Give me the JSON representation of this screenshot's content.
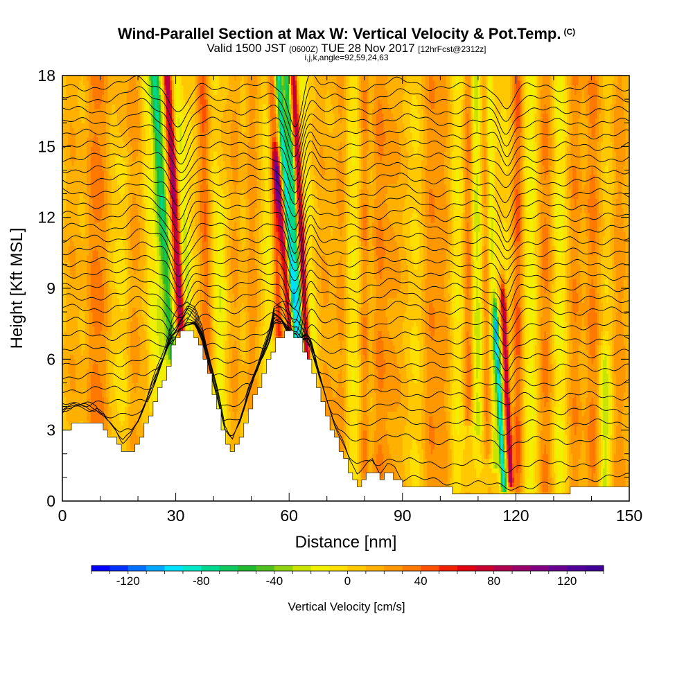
{
  "title": {
    "main": "Wind-Parallel Section at Max W: Vertical Velocity & Pot.Temp.",
    "copyright": "(C)",
    "valid_prefix": "Valid 1500 JST",
    "valid_zulu": "(0600Z)",
    "valid_date": "TUE 28 Nov 2017",
    "forecast": "[12hrFcst@2312z]",
    "indices": "i,j,k,angle=92,59,24,63"
  },
  "chart_data": {
    "type": "heatmap",
    "xlabel": "Distance [nm]",
    "ylabel": "Height [Kft MSL]",
    "xlim": [
      0,
      150
    ],
    "ylim": [
      0,
      18
    ],
    "x_ticks": [
      "0",
      "30",
      "60",
      "90",
      "120",
      "150"
    ],
    "y_ticks": [
      "0",
      "3",
      "6",
      "9",
      "12",
      "15",
      "18"
    ],
    "colorbar": {
      "label": "Vertical Velocity [cm/s]",
      "tick_labels": [
        "-120",
        "-80",
        "-40",
        "0",
        "40",
        "80",
        "120"
      ],
      "min": -140,
      "max": 140,
      "step": 10
    },
    "terrain_profile": [
      [
        0,
        3.0
      ],
      [
        3,
        3.3
      ],
      [
        9,
        3.3
      ],
      [
        11,
        3.0
      ],
      [
        12,
        2.8
      ],
      [
        14,
        2.5
      ],
      [
        16,
        2.0
      ],
      [
        18,
        2.1
      ],
      [
        20,
        2.6
      ],
      [
        22,
        3.3
      ],
      [
        24,
        4.2
      ],
      [
        27,
        5.5
      ],
      [
        29,
        6.6
      ],
      [
        31,
        7.2
      ],
      [
        33,
        7.4
      ],
      [
        35,
        7.0
      ],
      [
        37,
        6.2
      ],
      [
        39,
        5.0
      ],
      [
        41,
        3.8
      ],
      [
        43,
        2.5
      ],
      [
        45,
        2.1
      ],
      [
        47,
        2.8
      ],
      [
        49,
        3.8
      ],
      [
        51,
        4.6
      ],
      [
        53,
        5.4
      ],
      [
        55,
        6.3
      ],
      [
        56,
        7.0
      ],
      [
        60,
        7.1
      ],
      [
        62,
        7.0
      ],
      [
        64,
        6.3
      ],
      [
        66,
        5.5
      ],
      [
        68,
        4.5
      ],
      [
        70,
        3.5
      ],
      [
        72,
        2.6
      ],
      [
        74,
        1.9
      ],
      [
        76,
        1.1
      ],
      [
        78,
        0.7
      ],
      [
        80,
        1.0
      ],
      [
        82,
        1.3
      ],
      [
        84,
        0.9
      ],
      [
        86,
        1.2
      ],
      [
        88,
        1.0
      ],
      [
        90,
        0.5
      ],
      [
        94,
        0.5
      ],
      [
        100,
        0.5
      ],
      [
        106,
        0.4
      ],
      [
        112,
        0.3
      ],
      [
        120,
        0.3
      ],
      [
        126,
        0.3
      ],
      [
        133,
        0.3
      ],
      [
        134,
        0.6
      ],
      [
        150,
        0.6
      ]
    ],
    "vertical_velocity_features": [
      {
        "x": 29.0,
        "w": -60,
        "width": 1.3,
        "z_min": 6.0,
        "z_max": 18,
        "tilt": 0.38
      },
      {
        "x": 31.5,
        "w": 85,
        "width": 1.0,
        "z_min": 7.2,
        "z_max": 18,
        "tilt": 0.35
      },
      {
        "x": 33.5,
        "w": -25,
        "width": 1.2,
        "z_min": 7.0,
        "z_max": 18,
        "tilt": 0.3
      },
      {
        "x": 26.5,
        "w": -20,
        "width": 1.5,
        "z_min": 4.5,
        "z_max": 18,
        "tilt": 0.2
      },
      {
        "x": 24.0,
        "w": -18,
        "width": 1.2,
        "z_min": 4.0,
        "z_max": 18,
        "tilt": 0.15
      },
      {
        "x": 19.0,
        "w": 25,
        "width": 2.0,
        "z_min": 2.3,
        "z_max": 18,
        "tilt": 0.0
      },
      {
        "x": 16.0,
        "w": -15,
        "width": 2.0,
        "z_min": 2.3,
        "z_max": 14,
        "tilt": 0.0
      },
      {
        "x": 11.0,
        "w": 22,
        "width": 2.0,
        "z_min": 3.0,
        "z_max": 18,
        "tilt": 0.0
      },
      {
        "x": 8.0,
        "w": 18,
        "width": 2.0,
        "z_min": 3.3,
        "z_max": 18,
        "tilt": 0.0
      },
      {
        "x": 4.0,
        "w": 12,
        "width": 2.5,
        "z_min": 3.3,
        "z_max": 18,
        "tilt": 0.0
      },
      {
        "x": 38.5,
        "w": 30,
        "width": 1.5,
        "z_min": 5.5,
        "z_max": 18,
        "tilt": 0.1
      },
      {
        "x": 42.0,
        "w": -22,
        "width": 1.6,
        "z_min": 2.5,
        "z_max": 12,
        "tilt": 0.0
      },
      {
        "x": 46.0,
        "w": 20,
        "width": 1.5,
        "z_min": 2.5,
        "z_max": 18,
        "tilt": 0.0
      },
      {
        "x": 50.0,
        "w": 15,
        "width": 2.0,
        "z_min": 4.0,
        "z_max": 18,
        "tilt": 0.0
      },
      {
        "x": 55.0,
        "w": -12,
        "width": 1.5,
        "z_min": 6.5,
        "z_max": 18,
        "tilt": 0.0
      },
      {
        "x": 57.5,
        "w": 45,
        "width": 1.2,
        "z_min": 7.0,
        "z_max": 18,
        "tilt": 0.2
      },
      {
        "x": 59.0,
        "w": -30,
        "width": 1.0,
        "z_min": 7.2,
        "z_max": 12,
        "tilt": 0.3
      },
      {
        "x": 60.2,
        "w": 95,
        "width": 0.9,
        "z_min": 7.2,
        "z_max": 14,
        "tilt": 0.5
      },
      {
        "x": 62.0,
        "w": -95,
        "width": 1.0,
        "z_min": 6.5,
        "z_max": 18,
        "tilt": 0.42
      },
      {
        "x": 63.6,
        "w": -70,
        "width": 0.8,
        "z_min": 5.5,
        "z_max": 18,
        "tilt": 0.35
      },
      {
        "x": 65.0,
        "w": 85,
        "width": 0.8,
        "z_min": 5.2,
        "z_max": 18,
        "tilt": 0.3
      },
      {
        "x": 66.5,
        "w": -20,
        "width": 1.2,
        "z_min": 4.5,
        "z_max": 18,
        "tilt": 0.2
      },
      {
        "x": 69.5,
        "w": 18,
        "width": 1.8,
        "z_min": 3.0,
        "z_max": 18,
        "tilt": 0.1
      },
      {
        "x": 74.0,
        "w": 22,
        "width": 1.5,
        "z_min": 1.5,
        "z_max": 18,
        "tilt": 0.0
      },
      {
        "x": 77.5,
        "w": -15,
        "width": 2.0,
        "z_min": 1.0,
        "z_max": 18,
        "tilt": 0.0
      },
      {
        "x": 80.0,
        "w": 25,
        "width": 1.2,
        "z_min": 1.0,
        "z_max": 18,
        "tilt": 0.0
      },
      {
        "x": 83.5,
        "w": 25,
        "width": 2.0,
        "z_min": 1.0,
        "z_max": 18,
        "tilt": 0.0
      },
      {
        "x": 88.5,
        "w": 20,
        "width": 2.5,
        "z_min": 0.5,
        "z_max": 18,
        "tilt": 0.0
      },
      {
        "x": 93.0,
        "w": -12,
        "width": 2.0,
        "z_min": 0.5,
        "z_max": 18,
        "tilt": 0.0
      },
      {
        "x": 97.0,
        "w": 25,
        "width": 2.2,
        "z_min": 0.5,
        "z_max": 18,
        "tilt": 0.0
      },
      {
        "x": 101.5,
        "w": 18,
        "width": 2.0,
        "z_min": 0.5,
        "z_max": 18,
        "tilt": 0.0
      },
      {
        "x": 105.0,
        "w": -15,
        "width": 2.0,
        "z_min": 0.5,
        "z_max": 18,
        "tilt": 0.0
      },
      {
        "x": 107.5,
        "w": 30,
        "width": 1.3,
        "z_min": 3.5,
        "z_max": 18,
        "tilt": 0.0
      },
      {
        "x": 110.0,
        "w": -25,
        "width": 1.5,
        "z_min": 3.0,
        "z_max": 18,
        "tilt": 0.05
      },
      {
        "x": 112.5,
        "w": 25,
        "width": 1.3,
        "z_min": 2.0,
        "z_max": 18,
        "tilt": 0.05
      },
      {
        "x": 114.5,
        "w": -35,
        "width": 1.2,
        "z_min": 1.5,
        "z_max": 18,
        "tilt": 0.1
      },
      {
        "x": 116.8,
        "w": -90,
        "width": 0.7,
        "z_min": 0.6,
        "z_max": 7.5,
        "tilt": 0.3
      },
      {
        "x": 118.6,
        "w": 90,
        "width": 0.7,
        "z_min": 0.8,
        "z_max": 8.5,
        "tilt": 0.25
      },
      {
        "x": 120.5,
        "w": 30,
        "width": 1.3,
        "z_min": 0.5,
        "z_max": 18,
        "tilt": 0.0
      },
      {
        "x": 124.0,
        "w": -15,
        "width": 1.8,
        "z_min": 0.5,
        "z_max": 18,
        "tilt": 0.0
      },
      {
        "x": 128.0,
        "w": 22,
        "width": 2.0,
        "z_min": 0.5,
        "z_max": 18,
        "tilt": 0.0
      },
      {
        "x": 132.0,
        "w": -15,
        "width": 2.0,
        "z_min": 0.5,
        "z_max": 18,
        "tilt": 0.0
      },
      {
        "x": 136.0,
        "w": 22,
        "width": 2.0,
        "z_min": 0.5,
        "z_max": 18,
        "tilt": 0.0
      },
      {
        "x": 140.0,
        "w": 25,
        "width": 2.0,
        "z_min": 0.5,
        "z_max": 18,
        "tilt": 0.0
      },
      {
        "x": 143.5,
        "w": -30,
        "width": 1.5,
        "z_min": 0.5,
        "z_max": 6,
        "tilt": 0.0
      },
      {
        "x": 147.0,
        "w": 18,
        "width": 2.0,
        "z_min": 0.5,
        "z_max": 18,
        "tilt": 0.0
      }
    ],
    "potential_temperature_contours": {
      "height_levels_kft": [
        0.5,
        1.5,
        2.5,
        3.2,
        3.8,
        4.4,
        5.0,
        5.6,
        6.2,
        6.8,
        7.4,
        8.0,
        8.5,
        9.0,
        9.5,
        10.0,
        10.5,
        11.0,
        11.5,
        12.0,
        12.5,
        13.0,
        13.5,
        14.0,
        14.5,
        15.0,
        15.5,
        16.0,
        16.5,
        17.0,
        17.5
      ],
      "gravity_wave_perturbations": [
        {
          "x": 31.0,
          "amplitude_kft": -1.2,
          "width": 3.0
        },
        {
          "x": 61.5,
          "amplitude_kft": -1.6,
          "width": 2.5
        },
        {
          "x": 65.5,
          "amplitude_kft": 0.6,
          "width": 2.0
        },
        {
          "x": 117.5,
          "amplitude_kft": -0.9,
          "width": 2.2
        },
        {
          "x": 20.0,
          "amplitude_kft": 0.35,
          "width": 4.0
        },
        {
          "x": 90.0,
          "amplitude_kft": 0.25,
          "width": 6.0
        }
      ]
    }
  },
  "colors": {
    "terrain": "#ffffff",
    "frame": "#000000",
    "contour": "#000000",
    "colorbar": [
      "#0000ff",
      "#0030ff",
      "#0070ff",
      "#00a8ff",
      "#00e0ff",
      "#00e8c8",
      "#00d890",
      "#10c860",
      "#20b830",
      "#50c020",
      "#90d410",
      "#c8e400",
      "#f0f000",
      "#ffe000",
      "#ffc800",
      "#ffb000",
      "#ff9800",
      "#ff7800",
      "#ff5000",
      "#f02000",
      "#e00010",
      "#c80030",
      "#b00050",
      "#980068",
      "#800080",
      "#680090",
      "#500098",
      "#400098"
    ]
  }
}
